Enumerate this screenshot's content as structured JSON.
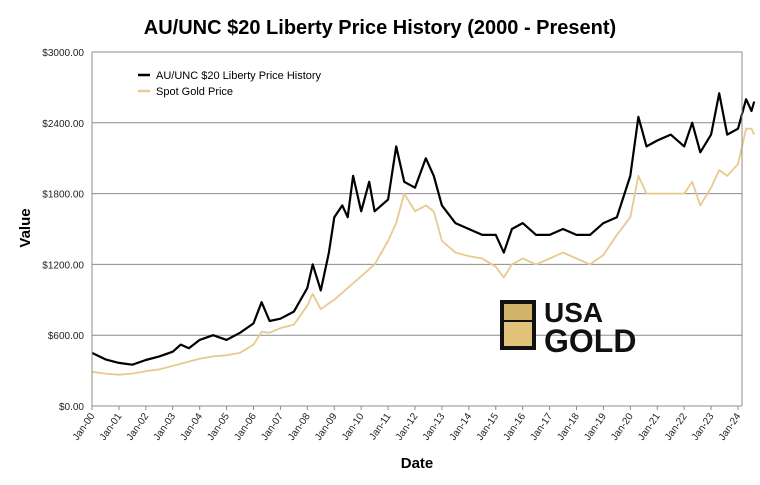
{
  "chart_data": {
    "type": "line",
    "title": "AU/UNC $20 Liberty Price History (2000 - Present)",
    "xlabel": "Date",
    "ylabel": "Value",
    "ylim": [
      0,
      3000
    ],
    "yticks": [
      "$0.00",
      "$600.00",
      "$1200.00",
      "$1800.00",
      "$2400.00",
      "$3000.00"
    ],
    "ytick_values": [
      0,
      600,
      1200,
      1800,
      2400,
      3000
    ],
    "categories": [
      "Jan-00",
      "Jan-01",
      "Jan-02",
      "Jan-03",
      "Jan-04",
      "Jan-05",
      "Jan-06",
      "Jan-07",
      "Jan-08",
      "Jan-09",
      "Jan-10",
      "Jan-11",
      "Jan-12",
      "Jan-13",
      "Jan-14",
      "Jan-15",
      "Jan-16",
      "Jan-17",
      "Jan-18",
      "Jan-19",
      "Jan-20",
      "Jan-21",
      "Jan-22",
      "Jan-23",
      "Jan-24"
    ],
    "grid": "horizontal",
    "legend_position": "top-left",
    "series": [
      {
        "name": "AU/UNC $20 Liberty Price History",
        "color": "#000000",
        "points": [
          [
            0,
            450
          ],
          [
            0.5,
            395
          ],
          [
            1,
            365
          ],
          [
            1.5,
            350
          ],
          [
            2,
            390
          ],
          [
            2.5,
            420
          ],
          [
            3,
            460
          ],
          [
            3.3,
            520
          ],
          [
            3.6,
            490
          ],
          [
            4,
            560
          ],
          [
            4.5,
            600
          ],
          [
            5,
            560
          ],
          [
            5.5,
            620
          ],
          [
            6,
            700
          ],
          [
            6.3,
            880
          ],
          [
            6.6,
            720
          ],
          [
            7,
            740
          ],
          [
            7.5,
            800
          ],
          [
            8,
            1000
          ],
          [
            8.2,
            1200
          ],
          [
            8.5,
            980
          ],
          [
            8.8,
            1300
          ],
          [
            9,
            1600
          ],
          [
            9.3,
            1700
          ],
          [
            9.5,
            1600
          ],
          [
            9.7,
            1950
          ],
          [
            10,
            1650
          ],
          [
            10.3,
            1900
          ],
          [
            10.5,
            1650
          ],
          [
            11,
            1750
          ],
          [
            11.3,
            2200
          ],
          [
            11.6,
            1900
          ],
          [
            12,
            1850
          ],
          [
            12.4,
            2100
          ],
          [
            12.7,
            1950
          ],
          [
            13,
            1700
          ],
          [
            13.5,
            1550
          ],
          [
            14,
            1500
          ],
          [
            14.5,
            1450
          ],
          [
            15,
            1450
          ],
          [
            15.3,
            1300
          ],
          [
            15.6,
            1500
          ],
          [
            16,
            1550
          ],
          [
            16.5,
            1450
          ],
          [
            17,
            1450
          ],
          [
            17.5,
            1500
          ],
          [
            18,
            1450
          ],
          [
            18.5,
            1450
          ],
          [
            19,
            1550
          ],
          [
            19.5,
            1600
          ],
          [
            20,
            1950
          ],
          [
            20.3,
            2450
          ],
          [
            20.6,
            2200
          ],
          [
            21,
            2250
          ],
          [
            21.5,
            2300
          ],
          [
            22,
            2200
          ],
          [
            22.3,
            2400
          ],
          [
            22.6,
            2150
          ],
          [
            23,
            2300
          ],
          [
            23.3,
            2650
          ],
          [
            23.6,
            2300
          ],
          [
            24,
            2350
          ],
          [
            24.3,
            2600
          ],
          [
            24.5,
            2500
          ],
          [
            24.6,
            2580
          ]
        ]
      },
      {
        "name": "Spot Gold Price",
        "color": "#e8c98f",
        "points": [
          [
            0,
            290
          ],
          [
            0.5,
            275
          ],
          [
            1,
            265
          ],
          [
            1.5,
            275
          ],
          [
            2,
            295
          ],
          [
            2.5,
            310
          ],
          [
            3,
            340
          ],
          [
            3.5,
            370
          ],
          [
            4,
            400
          ],
          [
            4.5,
            420
          ],
          [
            5,
            430
          ],
          [
            5.5,
            450
          ],
          [
            6,
            520
          ],
          [
            6.3,
            630
          ],
          [
            6.6,
            620
          ],
          [
            7,
            660
          ],
          [
            7.5,
            690
          ],
          [
            8,
            850
          ],
          [
            8.2,
            950
          ],
          [
            8.5,
            820
          ],
          [
            8.8,
            870
          ],
          [
            9,
            900
          ],
          [
            9.5,
            1000
          ],
          [
            10,
            1100
          ],
          [
            10.5,
            1200
          ],
          [
            11,
            1400
          ],
          [
            11.3,
            1550
          ],
          [
            11.6,
            1800
          ],
          [
            12,
            1650
          ],
          [
            12.4,
            1700
          ],
          [
            12.7,
            1650
          ],
          [
            13,
            1400
          ],
          [
            13.5,
            1300
          ],
          [
            14,
            1270
          ],
          [
            14.5,
            1250
          ],
          [
            15,
            1180
          ],
          [
            15.3,
            1090
          ],
          [
            15.6,
            1200
          ],
          [
            16,
            1250
          ],
          [
            16.5,
            1200
          ],
          [
            17,
            1250
          ],
          [
            17.5,
            1300
          ],
          [
            18,
            1250
          ],
          [
            18.5,
            1200
          ],
          [
            19,
            1280
          ],
          [
            19.5,
            1450
          ],
          [
            20,
            1600
          ],
          [
            20.3,
            1950
          ],
          [
            20.6,
            1800
          ],
          [
            21,
            1800
          ],
          [
            21.5,
            1800
          ],
          [
            22,
            1800
          ],
          [
            22.3,
            1900
          ],
          [
            22.6,
            1700
          ],
          [
            23,
            1850
          ],
          [
            23.3,
            2000
          ],
          [
            23.6,
            1950
          ],
          [
            24,
            2050
          ],
          [
            24.3,
            2350
          ],
          [
            24.5,
            2350
          ],
          [
            24.6,
            2300
          ]
        ]
      }
    ],
    "watermark": {
      "text_top": "USA",
      "text_bottom": "GOLD"
    }
  }
}
